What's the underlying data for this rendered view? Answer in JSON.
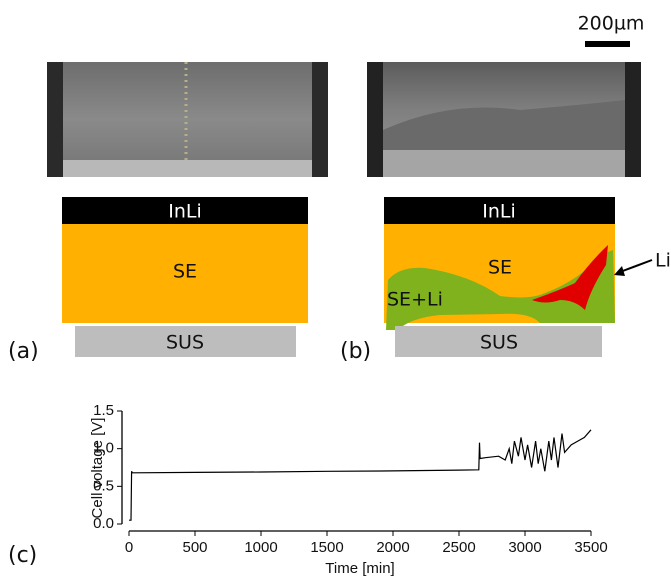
{
  "scale_bar": {
    "label": "200µm"
  },
  "panel_labels": [
    "(a)",
    "(b)",
    "(c)"
  ],
  "schematic_a": {
    "top": "InLi",
    "middle": "SE",
    "bottom": "SUS"
  },
  "schematic_b": {
    "top": "InLi",
    "middle": "SE",
    "region": "SE+Li",
    "annotation": "Li",
    "bottom": "SUS"
  },
  "chart_data": {
    "type": "line",
    "xlabel": "Time [min]",
    "ylabel": "Cell voltage [V]",
    "x": [
      0,
      15,
      20,
      25,
      40,
      500,
      1000,
      1500,
      2000,
      2500,
      2650,
      2655,
      2660,
      2700,
      2800,
      2850,
      2880,
      2900,
      2920,
      2950,
      2970,
      3000,
      3020,
      3050,
      3080,
      3100,
      3120,
      3150,
      3180,
      3200,
      3220,
      3250,
      3280,
      3300,
      3350,
      3400,
      3450,
      3500
    ],
    "values": [
      0.05,
      0.05,
      0.7,
      0.68,
      0.68,
      0.685,
      0.69,
      0.7,
      0.705,
      0.715,
      0.72,
      1.08,
      0.87,
      0.88,
      0.9,
      0.85,
      1.0,
      0.8,
      1.1,
      0.9,
      1.15,
      0.85,
      1.05,
      0.75,
      1.1,
      0.8,
      1.0,
      0.7,
      1.1,
      0.85,
      1.15,
      0.75,
      1.2,
      0.95,
      1.05,
      1.1,
      1.15,
      1.25
    ],
    "color": "#000000",
    "xlim": [
      0,
      3500
    ],
    "xticks": [
      0,
      500,
      1000,
      1500,
      2000,
      2500,
      3000,
      3500
    ],
    "ylim": [
      0,
      1.5
    ],
    "yticks": [
      {
        "value": 0,
        "label": "0.0"
      },
      0.5,
      {
        "value": 1,
        "label": "1.0"
      },
      1.5
    ]
  }
}
